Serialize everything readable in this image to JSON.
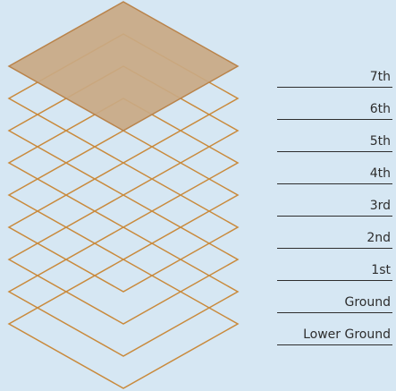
{
  "colors": {
    "background": "#d6e7f3",
    "floor_outline": "#c98a3c",
    "highlight_fill": "#c9a984",
    "highlight_stroke": "#b9834a",
    "label_text": "#2d2d2d",
    "rule_line": "#2d2d2d"
  },
  "highlighted_floor": "7th",
  "floors": [
    {
      "id": "lower-ground",
      "label": "Lower Ground"
    },
    {
      "id": "ground",
      "label": "Ground"
    },
    {
      "id": "1st",
      "label": "1st"
    },
    {
      "id": "2nd",
      "label": "2nd"
    },
    {
      "id": "3rd",
      "label": "3rd"
    },
    {
      "id": "4th",
      "label": "4th"
    },
    {
      "id": "5th",
      "label": "5th"
    },
    {
      "id": "6th",
      "label": "6th"
    },
    {
      "id": "7th",
      "label": "7th"
    }
  ]
}
